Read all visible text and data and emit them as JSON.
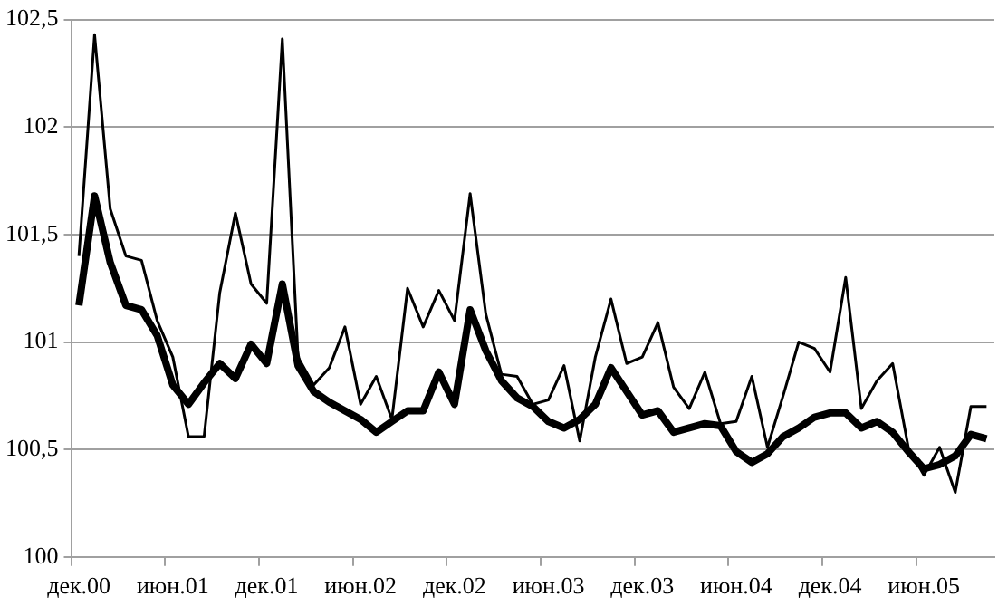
{
  "chart_data": {
    "type": "line",
    "categories": [
      "дек.00",
      null,
      null,
      null,
      null,
      null,
      "июн.01",
      null,
      null,
      null,
      null,
      null,
      "дек.01",
      null,
      null,
      null,
      null,
      null,
      "июн.02",
      null,
      null,
      null,
      null,
      null,
      "дек.02",
      null,
      null,
      null,
      null,
      null,
      "июн.03",
      null,
      null,
      null,
      null,
      null,
      "дек.03",
      null,
      null,
      null,
      null,
      null,
      "июн.04",
      null,
      null,
      null,
      null,
      null,
      "дек.04",
      null,
      null,
      null,
      null,
      null,
      "июн.05",
      null,
      null,
      null,
      null
    ],
    "series": [
      {
        "color": "#000000",
        "values": [
          101.4,
          102.43,
          101.62,
          101.4,
          101.38,
          101.1,
          100.93,
          100.56,
          100.56,
          101.23,
          101.6,
          101.27,
          101.18,
          102.41,
          100.93,
          100.8,
          100.88,
          101.07,
          100.71,
          100.84,
          100.64,
          101.25,
          101.07,
          101.24,
          101.1,
          101.69,
          101.13,
          100.85,
          100.84,
          100.71,
          100.73,
          100.89,
          100.54,
          100.93,
          101.2,
          100.9,
          100.93,
          101.09,
          100.79,
          100.69,
          100.86,
          100.62,
          100.63,
          100.84,
          100.51,
          100.75,
          101.0,
          100.97,
          100.86,
          101.3,
          100.69,
          100.82,
          100.9,
          100.51,
          100.38,
          100.51,
          100.3,
          100.7,
          100.7
        ]
      },
      {
        "color": "#000000",
        "values": [
          101.17,
          101.68,
          101.37,
          101.17,
          101.15,
          101.03,
          100.8,
          100.71,
          100.81,
          100.9,
          100.83,
          100.99,
          100.9,
          101.27,
          100.89,
          100.77,
          100.72,
          100.68,
          100.64,
          100.58,
          100.63,
          100.68,
          100.68,
          100.86,
          100.71,
          101.15,
          100.96,
          100.82,
          100.74,
          100.7,
          100.63,
          100.6,
          100.64,
          100.71,
          100.88,
          100.77,
          100.66,
          100.68,
          100.58,
          100.6,
          100.62,
          100.61,
          100.49,
          100.44,
          100.48,
          100.56,
          100.6,
          100.65,
          100.67,
          100.67,
          100.6,
          100.63,
          100.58,
          100.49,
          100.41,
          100.43,
          100.47,
          100.57,
          100.55
        ]
      }
    ],
    "ylim": [
      100,
      102.5
    ],
    "yticks": [
      100,
      {
        "value": 100.5,
        "label": "100,5"
      },
      101,
      {
        "value": 101.5,
        "label": "101,5"
      },
      102,
      {
        "value": 102.5,
        "label": "102,5"
      }
    ],
    "grid": "y",
    "legend": false,
    "marker": "none",
    "line_style": "solid"
  }
}
